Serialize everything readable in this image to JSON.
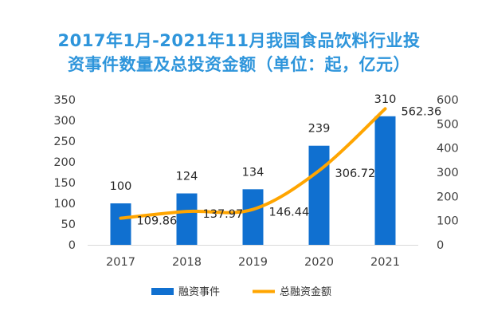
{
  "title_line1": "2017年1月-2021年11月我国食品饮料行业投",
  "title_line2": "资事件数量及总投资金额（单位：起，亿元）",
  "colors": {
    "bar": "#1070d0",
    "line": "#ffa500",
    "title": "#2e95db"
  },
  "chart_data": {
    "type": "bar+line",
    "categories": [
      "2017",
      "2018",
      "2019",
      "2020",
      "2021"
    ],
    "series": [
      {
        "name": "融资事件",
        "type": "bar",
        "axis": "left",
        "values": [
          100,
          124,
          134,
          239,
          310
        ]
      },
      {
        "name": "总融资金额",
        "type": "line",
        "axis": "right",
        "values": [
          109.86,
          137.97,
          146.44,
          306.72,
          562.36
        ]
      }
    ],
    "data_labels": {
      "bar": [
        "100",
        "124",
        "134",
        "239",
        "310"
      ],
      "line": [
        "109.86",
        "137.97",
        "146.44",
        "306.72",
        "562.36"
      ]
    },
    "y_left": {
      "min": 0,
      "max": 350,
      "ticks": [
        "0",
        "50",
        "100",
        "150",
        "200",
        "250",
        "300",
        "350"
      ]
    },
    "y_right": {
      "min": 0,
      "max": 600,
      "ticks": [
        "0",
        "100",
        "200",
        "300",
        "400",
        "500",
        "600"
      ]
    },
    "grid": false,
    "legend_position": "bottom"
  }
}
